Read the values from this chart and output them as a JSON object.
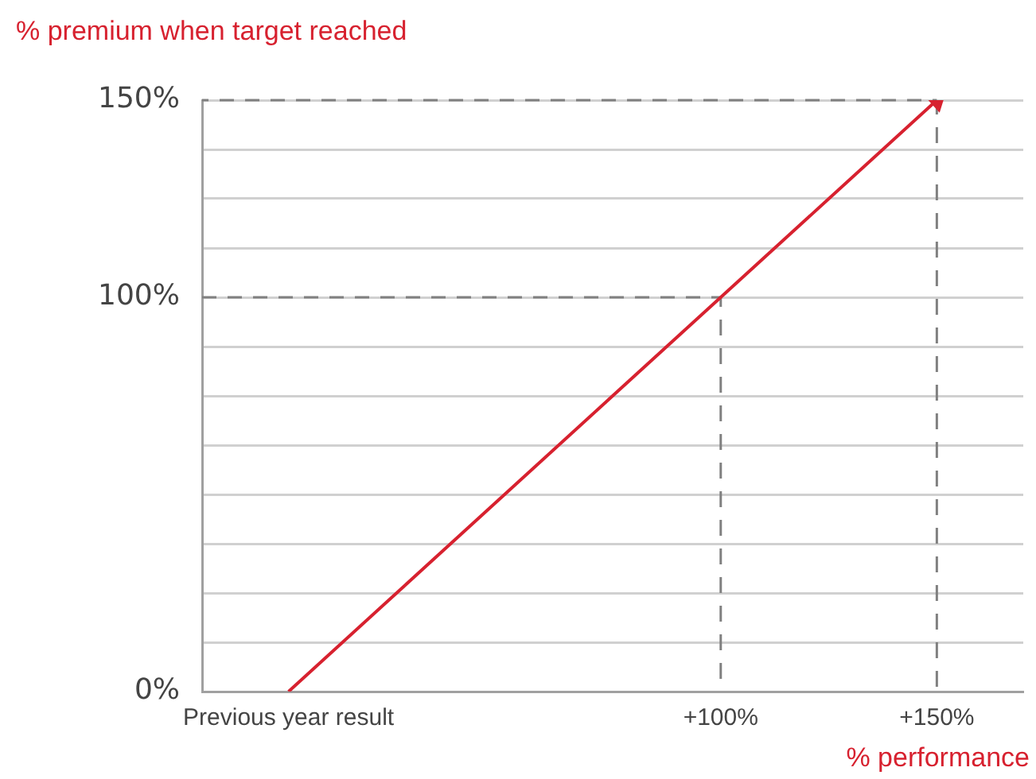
{
  "chart_data": {
    "type": "line",
    "xlabel": "% performance",
    "ylabel": "% premium when target reached",
    "x": [
      0,
      100,
      150
    ],
    "series": [
      {
        "color": "#d7212f",
        "values": [
          0,
          100,
          150
        ]
      }
    ],
    "xlim": [
      -20,
      170
    ],
    "xticks": [
      {
        "value": 0,
        "label": "Previous year result"
      },
      {
        "value": 100,
        "label": "+100%"
      },
      {
        "value": 150,
        "label": "+150%"
      }
    ],
    "ylim": [
      0,
      150
    ],
    "yticks": [
      {
        "value": 0,
        "label": "0%"
      },
      {
        "value": 12.5,
        "label": null
      },
      {
        "value": 25,
        "label": null
      },
      {
        "value": 37.5,
        "label": null
      },
      {
        "value": 50,
        "label": null
      },
      {
        "value": 62.5,
        "label": null
      },
      {
        "value": 75,
        "label": null
      },
      {
        "value": 87.5,
        "label": null
      },
      {
        "value": 100,
        "label": "100%"
      },
      {
        "value": 112.5,
        "label": null
      },
      {
        "value": 125,
        "label": null
      },
      {
        "value": 137.5,
        "label": null
      },
      {
        "value": 150,
        "label": "150%"
      }
    ],
    "grid": "y",
    "marker": "none",
    "ref_lines": [
      {
        "axis": "y",
        "value": 100,
        "color": "#808080",
        "line_style": "dashed"
      },
      {
        "axis": "y",
        "value": 150,
        "color": "#808080",
        "line_style": "dashed"
      },
      {
        "axis": "x",
        "value": 100,
        "color": "#808080",
        "line_style": "dashed"
      },
      {
        "axis": "x",
        "value": 150,
        "color": "#808080",
        "line_style": "dashed"
      }
    ]
  }
}
